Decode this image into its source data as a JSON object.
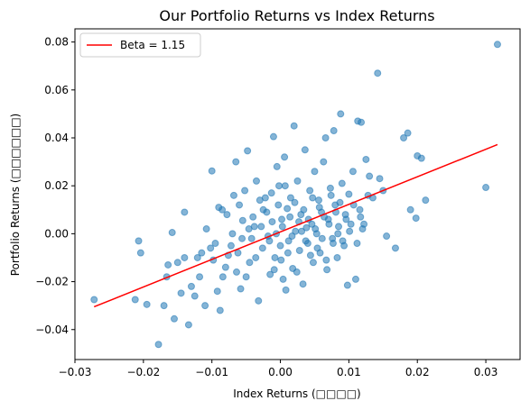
{
  "chart_data": {
    "type": "scatter",
    "title": "Our Portfolio Returns vs Index Returns",
    "xlabel": "Index Returns (□□□□)",
    "ylabel": "Portfolio Returns (□□□□□□)",
    "xlim": [
      -0.03,
      0.035
    ],
    "ylim": [
      -0.0525,
      0.0855
    ],
    "x_ticks": [
      "−0.03",
      "−0.02",
      "−0.01",
      "0.00",
      "0.01",
      "0.02",
      "0.03"
    ],
    "y_ticks": [
      "−0.04",
      "−0.02",
      "0.00",
      "0.02",
      "0.04",
      "0.06",
      "0.08"
    ],
    "grid": false,
    "legend_position": "top-left",
    "colors": {
      "points": "#1f77b4",
      "line": "#ff0000"
    },
    "series": [
      {
        "marker": "circle",
        "points": [
          [
            -0.0272,
            -0.0275
          ],
          [
            -0.0207,
            -0.003
          ],
          [
            -0.0204,
            -0.008
          ],
          [
            -0.0212,
            -0.0275
          ],
          [
            -0.0195,
            -0.0295
          ],
          [
            -0.0178,
            -0.0462
          ],
          [
            -0.017,
            -0.03
          ],
          [
            -0.0166,
            -0.018
          ],
          [
            -0.0164,
            -0.013
          ],
          [
            -0.0158,
            0.0005
          ],
          [
            -0.0145,
            -0.0248
          ],
          [
            -0.014,
            0.009
          ],
          [
            -0.0134,
            -0.038
          ],
          [
            -0.0121,
            -0.01
          ],
          [
            -0.01,
            0.0262
          ],
          [
            -0.0155,
            -0.0355
          ],
          [
            -0.013,
            -0.022
          ],
          [
            -0.0118,
            -0.018
          ],
          [
            -0.011,
            -0.03
          ],
          [
            -0.0102,
            -0.006
          ],
          [
            -0.0095,
            -0.004
          ],
          [
            -0.0092,
            -0.024
          ],
          [
            -0.0088,
            -0.032
          ],
          [
            -0.0085,
            0.01
          ],
          [
            -0.008,
            -0.014
          ],
          [
            -0.0078,
            0.008
          ],
          [
            -0.0072,
            -0.005
          ],
          [
            -0.0068,
            0.016
          ],
          [
            -0.0065,
            0.03
          ],
          [
            -0.0062,
            -0.008
          ],
          [
            -0.0058,
            -0.023
          ],
          [
            -0.0055,
            0.0055
          ],
          [
            -0.0052,
            0.018
          ],
          [
            -0.0048,
            0.0346
          ],
          [
            -0.0045,
            -0.012
          ],
          [
            -0.0042,
            -0.002
          ],
          [
            -0.0038,
            0.003
          ],
          [
            -0.0035,
            0.022
          ],
          [
            -0.0032,
            -0.028
          ],
          [
            -0.0028,
            0.003
          ],
          [
            -0.0025,
            0.01
          ],
          [
            -0.0022,
            0.015
          ],
          [
            -0.0018,
            -0.001
          ],
          [
            -0.0015,
            -0.017
          ],
          [
            -0.0012,
            0.005
          ],
          [
            -0.001,
            0.0405
          ],
          [
            -0.0008,
            -0.01
          ],
          [
            -0.0005,
            0.028
          ],
          [
            -0.0002,
            0.02
          ],
          [
            0.0,
            -0.005
          ],
          [
            0.0002,
            0.006
          ],
          [
            0.0004,
            -0.019
          ],
          [
            0.0006,
            0.032
          ],
          [
            0.0008,
            -0.0235
          ],
          [
            0.001,
            0.0105
          ],
          [
            0.0012,
            -0.003
          ],
          [
            0.0015,
            0.015
          ],
          [
            0.0018,
            -0.0145
          ],
          [
            0.002,
            0.045
          ],
          [
            0.0022,
            0.001
          ],
          [
            0.0025,
            0.022
          ],
          [
            0.0028,
            -0.007
          ],
          [
            0.003,
            0.008
          ],
          [
            0.0033,
            -0.021
          ],
          [
            0.0036,
            0.035
          ],
          [
            0.0038,
            0.0025
          ],
          [
            0.004,
            -0.004
          ],
          [
            0.0043,
            0.018
          ],
          [
            0.0046,
            0.004
          ],
          [
            0.0048,
            -0.012
          ],
          [
            0.005,
            0.026
          ],
          [
            0.0053,
            0.0
          ],
          [
            0.0056,
            0.014
          ],
          [
            0.0058,
            -0.008
          ],
          [
            0.006,
            0.009
          ],
          [
            0.0063,
            0.03
          ],
          [
            0.0066,
            0.04
          ],
          [
            0.0068,
            -0.015
          ],
          [
            0.007,
            0.006
          ],
          [
            0.0073,
            0.019
          ],
          [
            0.0076,
            -0.002
          ],
          [
            0.0078,
            0.043
          ],
          [
            0.008,
            0.012
          ],
          [
            0.0083,
            -0.01
          ],
          [
            0.0085,
            0.003
          ],
          [
            0.0088,
            0.05
          ],
          [
            0.009,
            0.021
          ],
          [
            0.0093,
            -0.005
          ],
          [
            0.0095,
            0.008
          ],
          [
            0.0098,
            -0.0215
          ],
          [
            0.01,
            0.0165
          ],
          [
            0.0103,
            0.004
          ],
          [
            0.0106,
            0.026
          ],
          [
            0.011,
            -0.019
          ],
          [
            0.0113,
            0.047
          ],
          [
            0.0116,
            0.01
          ],
          [
            0.0118,
            0.0465
          ],
          [
            0.012,
            0.002
          ],
          [
            0.0125,
            0.031
          ],
          [
            0.013,
            0.024
          ],
          [
            0.0135,
            0.015
          ],
          [
            0.0142,
            0.067
          ],
          [
            0.0145,
            0.023
          ],
          [
            0.015,
            0.018
          ],
          [
            0.0155,
            -0.001
          ],
          [
            0.0168,
            -0.006
          ],
          [
            0.018,
            0.04
          ],
          [
            0.0186,
            0.042
          ],
          [
            0.019,
            0.01
          ],
          [
            0.0198,
            0.0065
          ],
          [
            0.02,
            0.0325
          ],
          [
            0.0206,
            0.0315
          ],
          [
            0.0212,
            0.014
          ],
          [
            0.03,
            0.0193
          ],
          [
            0.0317,
            0.079
          ],
          [
            -0.015,
            -0.012
          ],
          [
            -0.014,
            -0.01
          ],
          [
            -0.0125,
            -0.026
          ],
          [
            -0.0115,
            -0.008
          ],
          [
            -0.0108,
            0.002
          ],
          [
            -0.0098,
            -0.011
          ],
          [
            -0.009,
            0.011
          ],
          [
            -0.0084,
            -0.018
          ],
          [
            -0.0076,
            -0.009
          ],
          [
            -0.007,
            0.0
          ],
          [
            -0.0064,
            -0.016
          ],
          [
            -0.006,
            0.012
          ],
          [
            -0.0056,
            -0.002
          ],
          [
            -0.005,
            -0.018
          ],
          [
            -0.0046,
            0.002
          ],
          [
            -0.004,
            0.007
          ],
          [
            -0.0036,
            -0.01
          ],
          [
            -0.003,
            0.014
          ],
          [
            -0.0026,
            -0.006
          ],
          [
            -0.002,
            0.009
          ],
          [
            -0.0016,
            -0.003
          ],
          [
            -0.0013,
            0.017
          ],
          [
            -0.0009,
            -0.015
          ],
          [
            -0.0006,
            0.0
          ],
          [
            -0.0003,
            0.012
          ],
          [
            0.0001,
            -0.011
          ],
          [
            0.0003,
            0.003
          ],
          [
            0.0007,
            0.02
          ],
          [
            0.0011,
            -0.008
          ],
          [
            0.0014,
            0.007
          ],
          [
            0.0017,
            -0.001
          ],
          [
            0.0021,
            0.013
          ],
          [
            0.0024,
            -0.016
          ],
          [
            0.0027,
            0.005
          ],
          [
            0.0031,
            0.001
          ],
          [
            0.0034,
            0.01
          ],
          [
            0.0037,
            -0.003
          ],
          [
            0.0041,
            0.006
          ],
          [
            0.0044,
            -0.009
          ],
          [
            0.0047,
            0.015
          ],
          [
            0.0051,
            0.002
          ],
          [
            0.0054,
            -0.006
          ],
          [
            0.0057,
            0.011
          ],
          [
            0.0061,
            -0.002
          ],
          [
            0.0064,
            0.007
          ],
          [
            0.0067,
            -0.011
          ],
          [
            0.0071,
            0.004
          ],
          [
            0.0074,
            0.016
          ],
          [
            0.0077,
            -0.004
          ],
          [
            0.0081,
            0.009
          ],
          [
            0.0084,
            0.0
          ],
          [
            0.0087,
            0.013
          ],
          [
            0.0091,
            -0.003
          ],
          [
            0.0096,
            0.006
          ],
          [
            0.0101,
            0.001
          ],
          [
            0.0107,
            0.012
          ],
          [
            0.0112,
            -0.004
          ],
          [
            0.0117,
            0.007
          ],
          [
            0.0122,
            0.004
          ],
          [
            0.0128,
            0.016
          ]
        ]
      },
      {
        "name": "Beta = 1.15",
        "type": "line",
        "x": [
          -0.0272,
          0.0317
        ],
        "y": [
          -0.0305,
          0.0372
        ]
      }
    ]
  }
}
